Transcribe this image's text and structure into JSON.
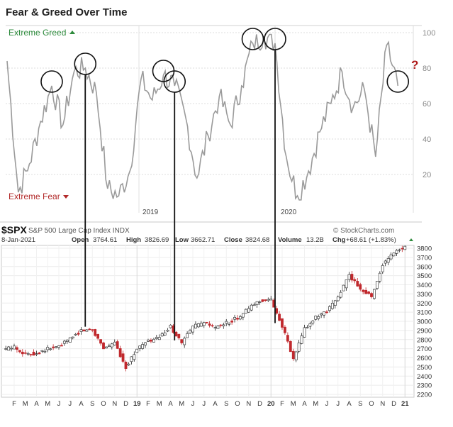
{
  "top_title": "Fear & Greed Over Time",
  "chart_data": [
    {
      "type": "line",
      "title": "Fear & Greed Over Time",
      "band_labels": {
        "greed": "Extreme Greed",
        "fear": "Extreme Fear"
      },
      "ylim": [
        0,
        100
      ],
      "y_ticks": [
        20,
        40,
        60,
        80,
        100
      ],
      "year_labels": [
        "2019",
        "2020"
      ],
      "question_mark": "?",
      "grid": true,
      "x": [
        "2018-02",
        "2018-03",
        "2018-04",
        "2018-05",
        "2018-06",
        "2018-07",
        "2018-08",
        "2018-09",
        "2018-10",
        "2018-11",
        "2018-12",
        "2019-01",
        "2019-02",
        "2019-03",
        "2019-04",
        "2019-05",
        "2019-06",
        "2019-07",
        "2019-08",
        "2019-09",
        "2019-10",
        "2019-11",
        "2019-12",
        "2020-01",
        "2020-02",
        "2020-03",
        "2020-04",
        "2020-05",
        "2020-06",
        "2020-07",
        "2020-08",
        "2020-09",
        "2020-10",
        "2020-11",
        "2020-12",
        "2021-01"
      ],
      "series": [
        {
          "values": [
            84,
            10,
            26,
            50,
            70,
            48,
            78,
            80,
            66,
            12,
            8,
            22,
            74,
            62,
            76,
            70,
            52,
            18,
            42,
            64,
            48,
            70,
            94,
            98,
            94,
            30,
            8,
            22,
            44,
            60,
            78,
            58,
            68,
            30,
            93,
            70
          ]
        }
      ]
    },
    {
      "type": "candlestick",
      "title": "$SPX",
      "subtitle": "S&P 500 Large Cap Index INDX",
      "date": "8-Jan-2021",
      "open_label": "Open",
      "open": "3764.61",
      "high_label": "High",
      "high": "3826.69",
      "low_label": "Low",
      "low": "3662.71",
      "close_label": "Close",
      "close": "3824.68",
      "volume_label": "Volume",
      "volume": "13.2B",
      "chg_label": "Chg",
      "chg": "+68.61 (+1.83%)",
      "watermark": "© StockCharts.com",
      "ylim": [
        2200,
        3800
      ],
      "y_ticks": [
        2200,
        2300,
        2400,
        2500,
        2600,
        2700,
        2800,
        2900,
        3000,
        3100,
        3200,
        3300,
        3400,
        3500,
        3600,
        3700,
        3800
      ],
      "x_labels": [
        "F",
        "M",
        "A",
        "M",
        "J",
        "J",
        "A",
        "S",
        "O",
        "N",
        "D",
        "19",
        "F",
        "M",
        "A",
        "M",
        "J",
        "J",
        "A",
        "S",
        "O",
        "N",
        "D",
        "20",
        "F",
        "M",
        "A",
        "M",
        "J",
        "J",
        "A",
        "S",
        "O",
        "N",
        "D",
        "21"
      ],
      "x": [
        "2018-02",
        "2018-03",
        "2018-04",
        "2018-05",
        "2018-06",
        "2018-07",
        "2018-08",
        "2018-09",
        "2018-10",
        "2018-11",
        "2018-12",
        "2019-01",
        "2019-02",
        "2019-03",
        "2019-04",
        "2019-05",
        "2019-06",
        "2019-07",
        "2019-08",
        "2019-09",
        "2019-10",
        "2019-11",
        "2019-12",
        "2020-01",
        "2020-02",
        "2020-03",
        "2020-04",
        "2020-05",
        "2020-06",
        "2020-07",
        "2020-08",
        "2020-09",
        "2020-10",
        "2020-11",
        "2020-12",
        "2021-01"
      ],
      "close_values": [
        2720,
        2640,
        2650,
        2700,
        2720,
        2810,
        2900,
        2910,
        2710,
        2760,
        2500,
        2700,
        2780,
        2820,
        2940,
        2760,
        2940,
        2980,
        2930,
        2980,
        3040,
        3140,
        3230,
        3230,
        2950,
        2580,
        2920,
        3040,
        3100,
        3270,
        3500,
        3360,
        3270,
        3620,
        3750,
        3820
      ]
    }
  ],
  "annotations": {
    "circled_peaks": [
      "2018-06",
      "2018-09",
      "2019-04",
      "2019-05",
      "2019-12",
      "2020-02",
      "2021-01"
    ],
    "connector_lines": [
      "2018-09",
      "2019-05",
      "2020-02"
    ]
  }
}
